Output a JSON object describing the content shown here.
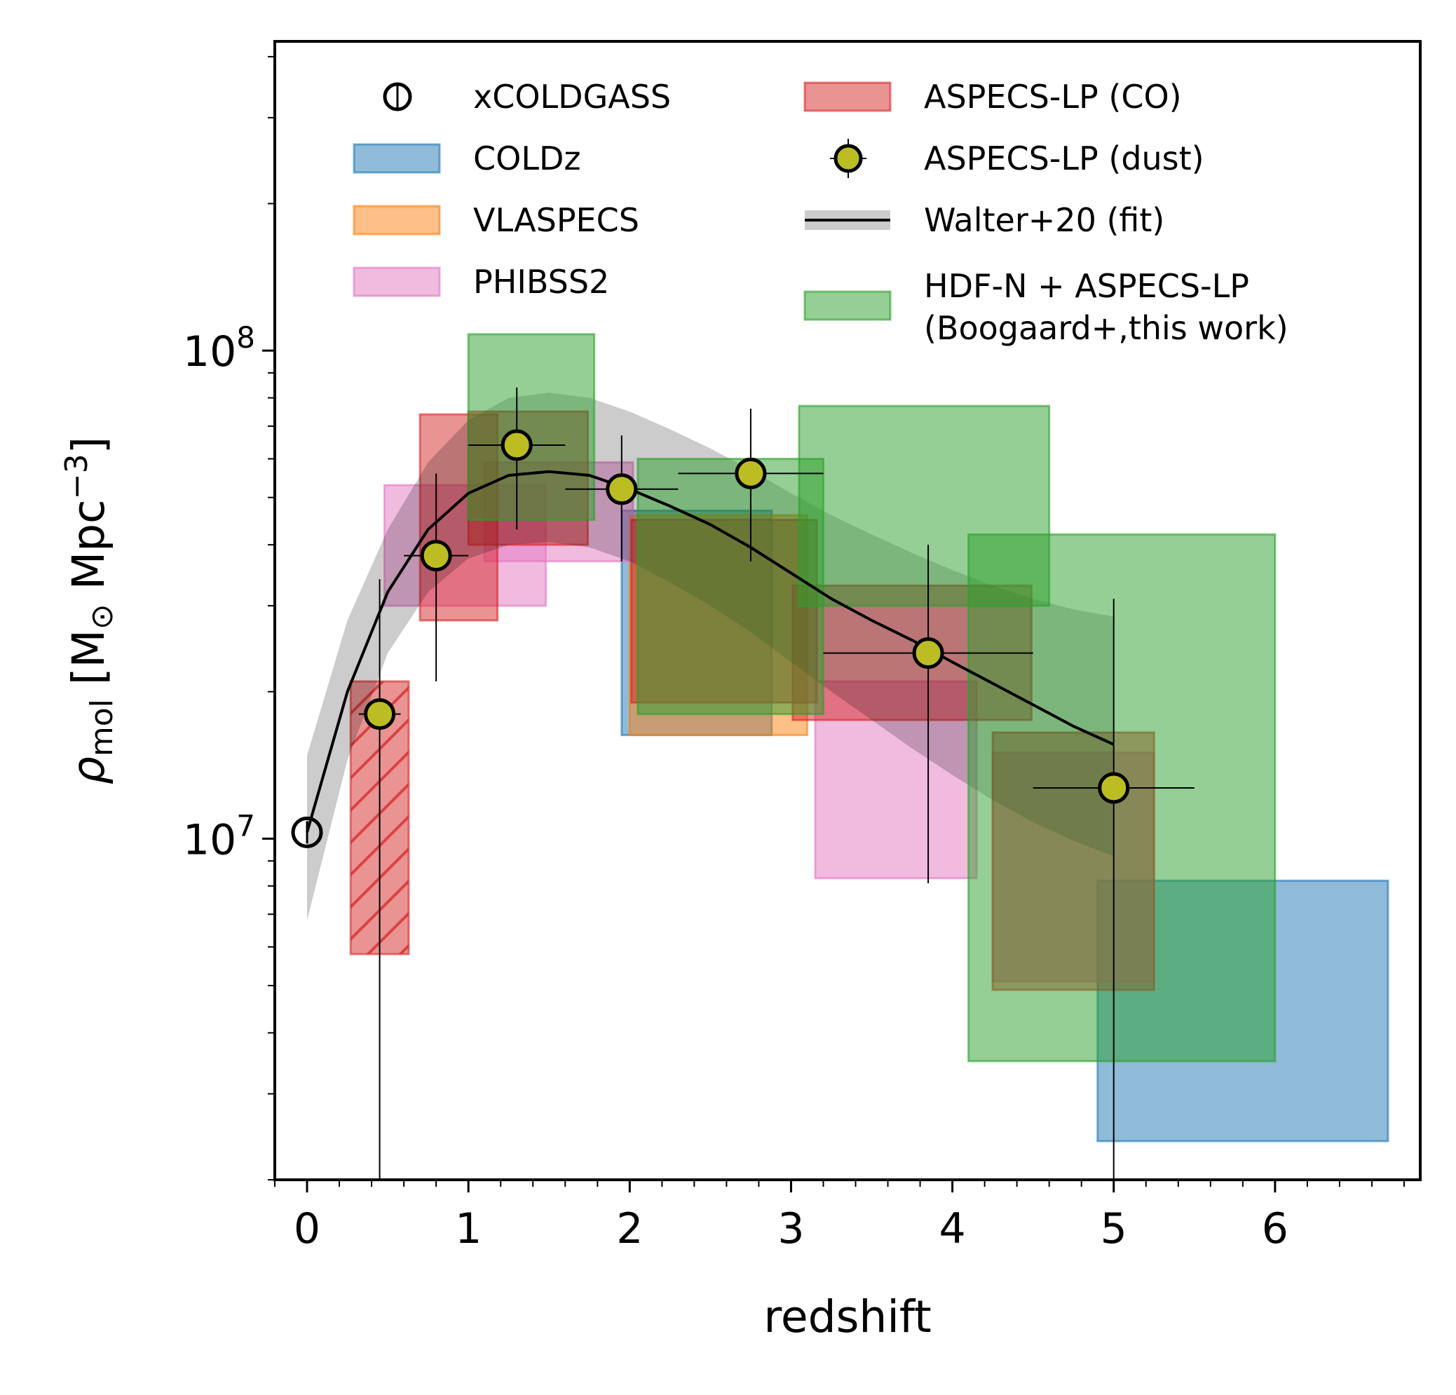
{
  "chart_data": {
    "type": "scatter",
    "title": "",
    "xlabel": "redshift",
    "ylabel": {
      "symbol": "ρ",
      "subscript": "mol",
      "units_prefix": " [M",
      "sun": "⊙",
      "units_mid": "  Mpc",
      "exponent": "−3",
      "units_suffix": "]"
    },
    "xlim": [
      -0.2,
      6.9
    ],
    "ylim": [
      2000000,
      430000000
    ],
    "yscale": "log",
    "xticks": [
      0,
      1,
      2,
      3,
      4,
      5,
      6
    ],
    "yticks": [
      {
        "value": 10000000,
        "base": "10",
        "exp": "7"
      },
      {
        "value": 100000000,
        "base": "10",
        "exp": "8"
      }
    ],
    "grid": false,
    "legend_position": "top",
    "series": [
      {
        "name": "xCOLDGASS",
        "kind": "point",
        "marker": "open-circle",
        "color": "#000000",
        "points": [
          {
            "x": 0.0,
            "y": 10300000
          }
        ]
      },
      {
        "name": "COLDz",
        "kind": "box",
        "color": "#1f77b4",
        "boxes": [
          {
            "x0": 1.95,
            "x1": 2.88,
            "y0": 16300000,
            "y1": 47000000
          },
          {
            "x0": 4.9,
            "x1": 6.7,
            "y0": 2400000,
            "y1": 8200000
          }
        ]
      },
      {
        "name": "VLASPECS",
        "kind": "box",
        "color": "#ff7f0e",
        "boxes": [
          {
            "x0": 2.0,
            "x1": 3.1,
            "y0": 16300000,
            "y1": 46000000
          }
        ]
      },
      {
        "name": "PHIBSS2",
        "kind": "box",
        "color": "#e377c2",
        "boxes": [
          {
            "x0": 0.48,
            "x1": 1.48,
            "y0": 30000000,
            "y1": 53000000
          },
          {
            "x0": 1.1,
            "x1": 2.02,
            "y0": 37000000,
            "y1": 59000000
          },
          {
            "x0": 3.15,
            "x1": 4.15,
            "y0": 8300000,
            "y1": 21000000
          },
          {
            "x0": 4.25,
            "x1": 5.25,
            "y0": 5100000,
            "y1": 15000000
          }
        ]
      },
      {
        "name": "ASPECS-LP (CO)",
        "kind": "box",
        "color": "#d62728",
        "boxes": [
          {
            "x0": 0.27,
            "x1": 0.63,
            "y0": 5800000,
            "y1": 21000000,
            "hatched": true
          },
          {
            "x0": 0.7,
            "x1": 1.18,
            "y0": 28000000,
            "y1": 74000000
          },
          {
            "x0": 1.0,
            "x1": 1.74,
            "y0": 40000000,
            "y1": 75000000
          },
          {
            "x0": 2.01,
            "x1": 3.16,
            "y0": 19000000,
            "y1": 45000000
          },
          {
            "x0": 3.01,
            "x1": 4.49,
            "y0": 17500000,
            "y1": 33000000
          },
          {
            "x0": 4.25,
            "x1": 5.25,
            "y0": 4900000,
            "y1": 16500000
          }
        ]
      },
      {
        "name": "ASPECS-LP (dust)",
        "kind": "errorbar",
        "color": "#bcbd22",
        "points": [
          {
            "x": 0.45,
            "y": 18000000,
            "xerr": 0.13,
            "ylo": 1000000,
            "yhi": 34000000
          },
          {
            "x": 0.8,
            "y": 38000000,
            "xerr": 0.2,
            "ylo": 21000000,
            "yhi": 56000000
          },
          {
            "x": 1.3,
            "y": 64000000,
            "xerr": 0.3,
            "ylo": 43000000,
            "yhi": 84000000
          },
          {
            "x": 1.95,
            "y": 52000000,
            "xerr": 0.35,
            "ylo": 37000000,
            "yhi": 67000000
          },
          {
            "x": 2.75,
            "y": 56000000,
            "xerr": 0.45,
            "ylo": 37000000,
            "yhi": 76000000
          },
          {
            "x": 3.85,
            "y": 24000000,
            "xerr": 0.65,
            "ylo": 8100000,
            "yhi": 40000000
          },
          {
            "x": 5.0,
            "y": 12700000,
            "xerr": 0.5,
            "ylo": 1000000,
            "yhi": 31000000
          }
        ]
      },
      {
        "name": "Walter+20 (fit)",
        "kind": "line-band",
        "color": "#000000",
        "z": [
          0.0,
          0.25,
          0.5,
          0.75,
          1.0,
          1.25,
          1.5,
          1.75,
          2.0,
          2.25,
          2.5,
          2.75,
          3.0,
          3.25,
          3.5,
          3.75,
          4.0,
          4.25,
          4.5,
          4.75,
          5.0
        ],
        "y": [
          10300000,
          20000000,
          32000000,
          43000000,
          51000000,
          55500000,
          56500000,
          55500000,
          52000000,
          48000000,
          44000000,
          39500000,
          35000000,
          31000000,
          28000000,
          25500000,
          23000000,
          20800000,
          18800000,
          17000000,
          15600000
        ],
        "ylow": [
          6800000,
          14500000,
          24000000,
          32000000,
          37500000,
          40000000,
          40500000,
          39500000,
          37000000,
          33500000,
          30000000,
          26500000,
          23000000,
          20000000,
          17500000,
          15300000,
          13500000,
          12000000,
          10800000,
          9900000,
          9200000
        ],
        "yhigh": [
          14800000,
          28000000,
          43000000,
          59000000,
          72000000,
          80000000,
          82000000,
          80000000,
          75000000,
          69000000,
          63000000,
          57000000,
          51000000,
          46000000,
          42000000,
          38500000,
          35500000,
          33000000,
          31000000,
          29500000,
          28500000
        ]
      },
      {
        "name": "HDF-N + ASPECS-LP (Boogaard+,this work)",
        "kind": "box",
        "color": "#2ca02c",
        "boxes": [
          {
            "x0": 1.0,
            "x1": 1.78,
            "y0": 45000000,
            "y1": 108000000
          },
          {
            "x0": 2.05,
            "x1": 3.2,
            "y0": 18000000,
            "y1": 60000000
          },
          {
            "x0": 3.05,
            "x1": 4.6,
            "y0": 30000000,
            "y1": 77000000
          },
          {
            "x0": 4.1,
            "x1": 6.0,
            "y0": 3500000,
            "y1": 42000000
          }
        ]
      }
    ],
    "legend": [
      {
        "key": "xcoldgass",
        "label": "xCOLDGASS",
        "label2": ""
      },
      {
        "key": "coldz",
        "label": "COLDz",
        "label2": ""
      },
      {
        "key": "vlaspecs",
        "label": "VLASPECS",
        "label2": ""
      },
      {
        "key": "phibss2",
        "label": "PHIBSS2",
        "label2": ""
      },
      {
        "key": "aspecs-co",
        "label": "ASPECS-LP (CO)",
        "label2": ""
      },
      {
        "key": "aspecs-dust",
        "label": "ASPECS-LP (dust)",
        "label2": ""
      },
      {
        "key": "walter20",
        "label": "Walter+20 (fit)",
        "label2": ""
      },
      {
        "key": "hdfn",
        "label": "HDF-N + ASPECS-LP",
        "label2": "(Boogaard+,this work)"
      }
    ]
  }
}
